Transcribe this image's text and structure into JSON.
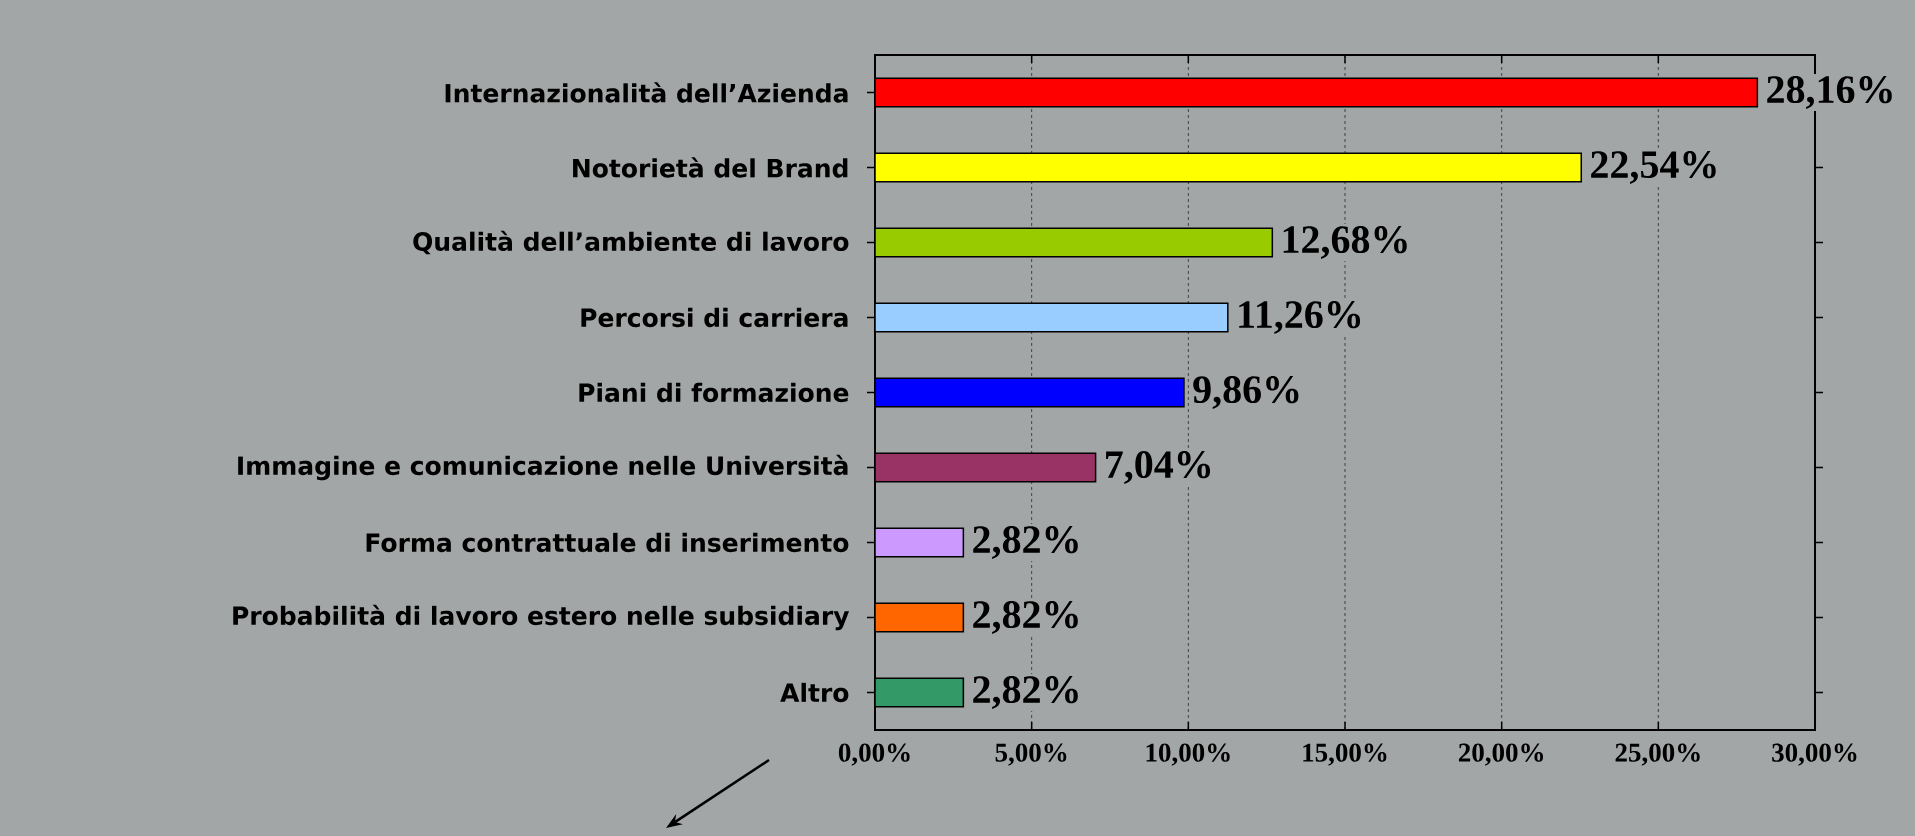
{
  "chart_data": {
    "type": "bar",
    "orientation": "horizontal",
    "categories": [
      "Internazionalità dell’Azienda",
      "Notorietà del Brand",
      "Qualità dell’ambiente di lavoro",
      "Percorsi di carriera",
      "Piani di formazione",
      "Immagine e comunicazione nelle Università",
      "Forma contrattuale di inserimento",
      "Probabilità di lavoro estero nelle subsidiary",
      "Altro"
    ],
    "values": [
      28.16,
      22.54,
      12.68,
      11.26,
      9.86,
      7.04,
      2.82,
      2.82,
      2.82
    ],
    "value_labels": [
      "28,16%",
      "22,54%",
      "12,68%",
      "11,26%",
      "9,86%",
      "7,04%",
      "2,82%",
      "2,82%",
      "2,82%"
    ],
    "colors": [
      "#ff0000",
      "#ffff00",
      "#99cc00",
      "#99ccff",
      "#0000ff",
      "#993366",
      "#cc99ff",
      "#ff6600",
      "#339966"
    ],
    "xlim": [
      0,
      30
    ],
    "xticks": [
      {
        "value": 0,
        "label": "0,00%"
      },
      {
        "value": 5,
        "label": "5,00%"
      },
      {
        "value": 10,
        "label": "10,00%"
      },
      {
        "value": 15,
        "label": "15,00%"
      },
      {
        "value": 20,
        "label": "20,00%"
      },
      {
        "value": 25,
        "label": "25,00%"
      },
      {
        "value": 30,
        "label": "30,00%"
      }
    ],
    "grid": "x"
  }
}
